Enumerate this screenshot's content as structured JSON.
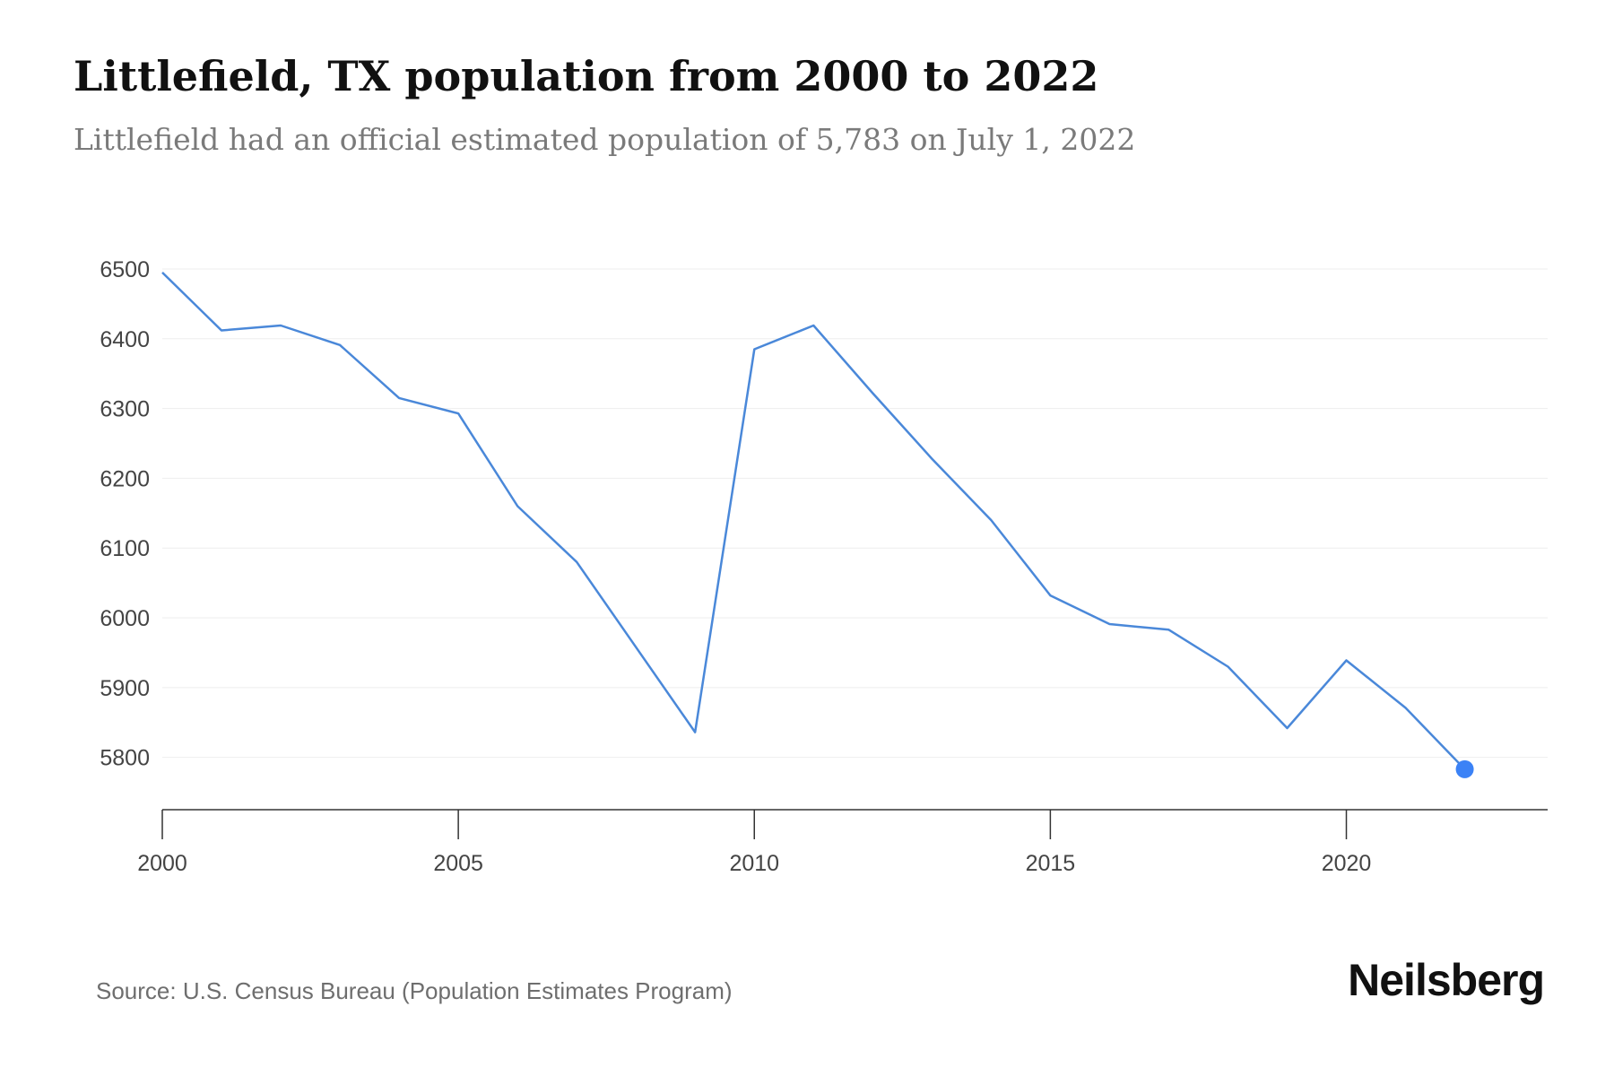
{
  "header": {
    "title": "Littlefield, TX population from 2000 to 2022",
    "subtitle": "Littlefield had an official estimated population of 5,783 on July 1, 2022"
  },
  "footer": {
    "source": "Source: U.S. Census Bureau (Population Estimates Program)",
    "brand": "Neilsberg"
  },
  "colors": {
    "line": "#4a88d9",
    "highlight_point": "#3b82f6",
    "grid": "#eeeeee",
    "axis": "#333333",
    "tick_text": "#444444"
  },
  "chart_data": {
    "type": "line",
    "title": "Littlefield, TX population from 2000 to 2022",
    "subtitle": "Littlefield had an official estimated population of 5,783 on July 1, 2022",
    "xlabel": "",
    "ylabel": "",
    "x": [
      2000,
      2001,
      2002,
      2003,
      2004,
      2005,
      2006,
      2007,
      2008,
      2009,
      2010,
      2011,
      2012,
      2013,
      2014,
      2015,
      2016,
      2017,
      2018,
      2019,
      2020,
      2021,
      2022
    ],
    "series": [
      {
        "values": [
          6495,
          6412,
          6419,
          6391,
          6315,
          6293,
          6160,
          6080,
          5958,
          5836,
          6385,
          6419,
          6322,
          6228,
          6140,
          6032,
          5991,
          5983,
          5930,
          5842,
          5939,
          5871,
          5783
        ]
      }
    ],
    "xlim": [
      2000,
      2023.4
    ],
    "ylim": [
      5725,
      6500
    ],
    "yticks": [
      5800,
      5900,
      6000,
      6100,
      6200,
      6300,
      6400,
      6500
    ],
    "xticks": [
      2000,
      2005,
      2010,
      2015,
      2020
    ],
    "highlight_last_point": true,
    "grid": "horizontal",
    "legend": "none"
  }
}
